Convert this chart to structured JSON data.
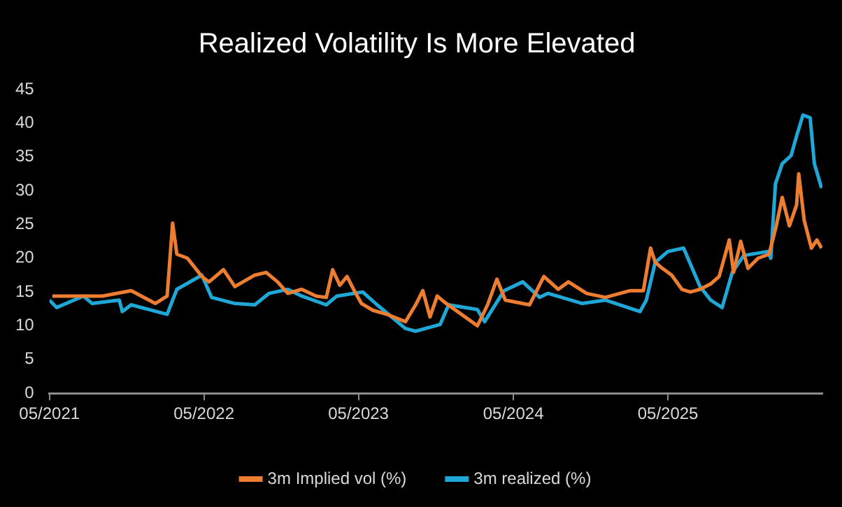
{
  "chart_data": {
    "type": "line",
    "title": "Realized Volatility Is More Elevated",
    "xlim": [
      "2021-05",
      "2026-05"
    ],
    "xticks": [
      {
        "value": "2021-05",
        "label": "05/2021"
      },
      {
        "value": "2022-05",
        "label": "05/2022"
      },
      {
        "value": "2023-05",
        "label": "05/2023"
      },
      {
        "value": "2024-05",
        "label": "05/2024"
      },
      {
        "value": "2025-05",
        "label": "05/2025"
      }
    ],
    "ylim": [
      0,
      45
    ],
    "yticks": [
      0,
      5,
      10,
      15,
      20,
      25,
      30,
      35,
      40,
      45
    ],
    "grid": false,
    "legend": "bottom",
    "marker": "none",
    "line_style": "solid",
    "series": [
      {
        "name": "3m Implied vol (%)",
        "color": "#ed7d31",
        "x": [
          "2021-05-08",
          "2021-06-27",
          "2021-09-03",
          "2021-11-10",
          "2022-01-06",
          "2022-02-03",
          "2022-02-16",
          "2022-02-26",
          "2022-03-23",
          "2022-04-26",
          "2022-05-13",
          "2022-06-16",
          "2022-07-13",
          "2022-08-29",
          "2022-09-25",
          "2022-10-22",
          "2022-11-15",
          "2022-12-18",
          "2023-01-21",
          "2023-02-14",
          "2023-03-01",
          "2023-03-18",
          "2023-04-04",
          "2023-04-21",
          "2023-05-08",
          "2023-06-04",
          "2023-07-07",
          "2023-08-20",
          "2023-09-13",
          "2023-09-30",
          "2023-10-17",
          "2023-11-03",
          "2023-11-20",
          "2024-02-06",
          "2024-03-01",
          "2024-03-23",
          "2024-04-12",
          "2024-06-08",
          "2024-07-12",
          "2024-08-15",
          "2024-09-08",
          "2024-10-21",
          "2024-12-04",
          "2025-02-01",
          "2025-03-04",
          "2025-03-21",
          "2025-04-01",
          "2025-04-18",
          "2025-05-10",
          "2025-06-03",
          "2025-06-23",
          "2025-07-16",
          "2025-08-10",
          "2025-08-30",
          "2025-09-23",
          "2025-10-03",
          "2025-10-20",
          "2025-11-06",
          "2025-11-30",
          "2025-12-26",
          "2026-01-12",
          "2026-01-26",
          "2026-02-12",
          "2026-03-01",
          "2026-03-06",
          "2026-03-19",
          "2026-04-05",
          "2026-04-18",
          "2026-04-29"
        ],
        "values": [
          14.4,
          14.4,
          14.4,
          15.2,
          13.3,
          14.4,
          25.2,
          20.6,
          20,
          17.3,
          16.5,
          18.3,
          15.8,
          17.5,
          17.9,
          16.5,
          14.8,
          15.4,
          14.4,
          14.2,
          18.3,
          16,
          17.3,
          15.2,
          13.3,
          12.3,
          11.7,
          10.6,
          13.1,
          15.2,
          11.3,
          14.4,
          13.5,
          10,
          13.1,
          16.9,
          13.8,
          13.1,
          17.3,
          15.4,
          16.5,
          14.8,
          14.2,
          15.2,
          15.2,
          21.5,
          19.4,
          18.5,
          17.5,
          15.4,
          15,
          15.4,
          16.2,
          17.3,
          22.7,
          17.9,
          22.5,
          18.5,
          20,
          20.6,
          24.8,
          29,
          24.8,
          27.9,
          32.5,
          25.6,
          21.5,
          22.7,
          21.5
        ]
      },
      {
        "name": "3m realized (%)",
        "color": "#1fa7d8",
        "x": [
          "2021-05-01",
          "2021-05-18",
          "2021-07-20",
          "2021-08-10",
          "2021-10-13",
          "2021-10-20",
          "2021-11-10",
          "2022-02-03",
          "2022-02-26",
          "2022-04-26",
          "2022-05-19",
          "2022-07-13",
          "2022-08-29",
          "2022-10-02",
          "2022-11-15",
          "2022-12-18",
          "2023-02-14",
          "2023-03-11",
          "2023-05-11",
          "2023-06-14",
          "2023-08-20",
          "2023-09-13",
          "2023-11-10",
          "2023-11-30",
          "2024-02-06",
          "2024-02-23",
          "2024-04-09",
          "2024-05-23",
          "2024-07-02",
          "2024-07-22",
          "2024-10-11",
          "2024-12-04",
          "2025-02-24",
          "2025-03-11",
          "2025-04-01",
          "2025-05-01",
          "2025-06-07",
          "2025-07-16",
          "2025-08-10",
          "2025-09-06",
          "2025-09-30",
          "2025-10-27",
          "2025-12-23",
          "2025-12-30",
          "2026-01-10",
          "2026-01-26",
          "2026-02-16",
          "2026-03-01",
          "2026-03-16",
          "2026-04-02",
          "2026-04-12",
          "2026-04-29"
        ],
        "values": [
          13.8,
          12.7,
          14.4,
          13.3,
          13.8,
          12.1,
          13.1,
          11.7,
          15.4,
          17.5,
          14.2,
          13.3,
          13.1,
          14.8,
          15.4,
          14.4,
          13.1,
          14.4,
          15,
          13.1,
          9.6,
          9.2,
          10.2,
          13.1,
          12.4,
          10.6,
          15.2,
          16.5,
          14.2,
          14.8,
          13.3,
          13.8,
          12.1,
          13.8,
          19.4,
          21,
          21.5,
          15.8,
          13.8,
          12.7,
          17.9,
          20.4,
          21,
          20,
          31,
          34,
          35.2,
          38.1,
          41.2,
          40.8,
          34,
          30.4
        ]
      }
    ]
  }
}
